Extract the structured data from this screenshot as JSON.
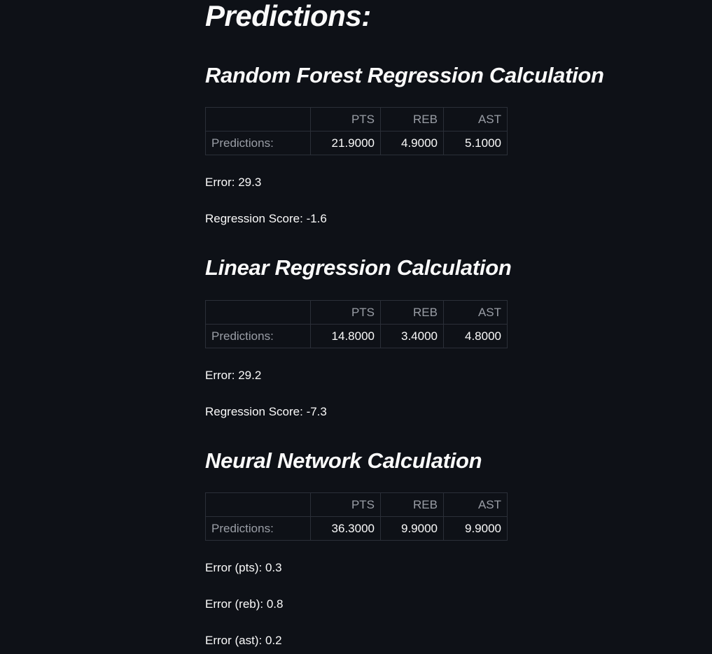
{
  "page_title": "Predictions:",
  "columns": [
    "PTS",
    "REB",
    "AST"
  ],
  "row_label": "Predictions:",
  "sections": [
    {
      "title": "Random Forest Regression Calculation",
      "values": [
        "21.9000",
        "4.9000",
        "5.1000"
      ],
      "stats": [
        "Error: 29.3",
        "Regression Score: -1.6"
      ]
    },
    {
      "title": "Linear Regression Calculation",
      "values": [
        "14.8000",
        "3.4000",
        "4.8000"
      ],
      "stats": [
        "Error: 29.2",
        "Regression Score: -7.3"
      ]
    },
    {
      "title": "Neural Network Calculation",
      "values": [
        "36.3000",
        "9.9000",
        "9.9000"
      ],
      "stats": [
        "Error (pts): 0.3",
        "Error (reb): 0.8",
        "Error (ast): 0.2"
      ]
    }
  ]
}
